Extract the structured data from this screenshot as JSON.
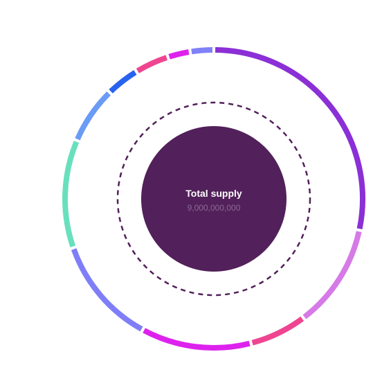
{
  "chart_data": {
    "type": "pie",
    "center_label": "Total supply",
    "center_value": "9,000,000,000",
    "series": [
      {
        "value": 29.0,
        "color": "#8b2fd6"
      },
      {
        "value": 11.6,
        "color": "#d57ae6"
      },
      {
        "value": 6.4,
        "color": "#ef4590"
      },
      {
        "value": 12.2,
        "color": "#dd22ee"
      },
      {
        "value": 12.0,
        "color": "#7f7ef8"
      },
      {
        "value": 12.0,
        "color": "#69e0bd"
      },
      {
        "value": 6.4,
        "color": "#6a9bf5"
      },
      {
        "value": 3.7,
        "color": "#2962ee"
      },
      {
        "value": 3.8,
        "color": "#ef4590"
      },
      {
        "value": 2.5,
        "color": "#dd22ee"
      },
      {
        "value": 2.6,
        "color": "#8080f8"
      }
    ],
    "accent_colors": {
      "center_fill": "#52205a",
      "dashed_ring": "#52205a"
    }
  }
}
